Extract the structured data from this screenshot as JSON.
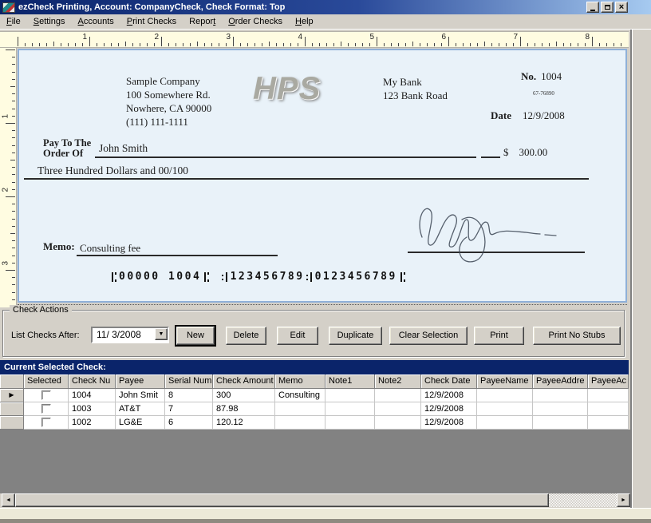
{
  "window": {
    "title": "ezCheck Printing, Account: CompanyCheck, Check Format: Top"
  },
  "menu": {
    "items": [
      {
        "label": "File",
        "key_index": 0
      },
      {
        "label": "Settings",
        "key_index": 0
      },
      {
        "label": "Accounts",
        "key_index": 0
      },
      {
        "label": "Print Checks",
        "key_index": 0
      },
      {
        "label": "Report",
        "key_index": 5
      },
      {
        "label": "Order Checks",
        "key_index": 0
      },
      {
        "label": "Help",
        "key_index": 0
      }
    ]
  },
  "ruler": {
    "horizontal": [
      1,
      2,
      3,
      4,
      5,
      6,
      7,
      8
    ],
    "vertical": [
      1,
      2,
      3
    ]
  },
  "check": {
    "company": {
      "name": "Sample Company",
      "address1": "100 Somewhere Rd.",
      "address2": "Nowhere, CA 90000",
      "phone": "(111) 111-1111"
    },
    "watermark": "HPS",
    "bank": {
      "name": "My Bank",
      "address": "123 Bank Road"
    },
    "number_label": "No.",
    "number": "1004",
    "fraction": "67-76890",
    "date_label": "Date",
    "date": "12/9/2008",
    "pay_to_line1": "Pay To The",
    "pay_to_line2": "Order Of",
    "payee": "John Smith",
    "currency_symbol": "$",
    "amount": "300.00",
    "amount_words": "Three Hundred  Dollars and 00/100",
    "memo_label": "Memo:",
    "memo": "Consulting fee",
    "micr": {
      "check_number": "00000 1004",
      "routing": "123456789",
      "account": "0123456789"
    }
  },
  "actions": {
    "group_label": "Check Actions",
    "list_checks_label": "List Checks After:",
    "date_value": "11/ 3/2008",
    "buttons": [
      "New",
      "Delete",
      "Edit",
      "Duplicate",
      "Clear Selection",
      "Print",
      "Print No Stubs"
    ]
  },
  "grid": {
    "title": "Current Selected Check:",
    "columns": [
      "",
      "Selected",
      "Check Nu",
      "Payee",
      "Serial Num",
      "Check Amount",
      "Memo",
      "Note1",
      "Note2",
      "Check Date",
      "PayeeName",
      "PayeeAddre",
      "PayeeAc"
    ],
    "rows": [
      {
        "current": true,
        "selected": false,
        "cells": [
          "1004",
          "John Smit",
          "8",
          "300",
          "Consulting",
          "",
          "",
          "12/9/2008",
          "",
          "",
          ""
        ]
      },
      {
        "current": false,
        "selected": false,
        "cells": [
          "1003",
          "AT&T",
          "7",
          "87.98",
          "",
          "",
          "",
          "12/9/2008",
          "",
          "",
          ""
        ]
      },
      {
        "current": false,
        "selected": false,
        "cells": [
          "1002",
          "LG&E",
          "6",
          "120.12",
          "",
          "",
          "",
          "12/9/2008",
          "",
          "",
          ""
        ]
      }
    ]
  },
  "icons": {
    "close": "×",
    "dropdown": "▼",
    "row_arrow": "▶",
    "scroll_left": "◄",
    "scroll_right": "►"
  }
}
